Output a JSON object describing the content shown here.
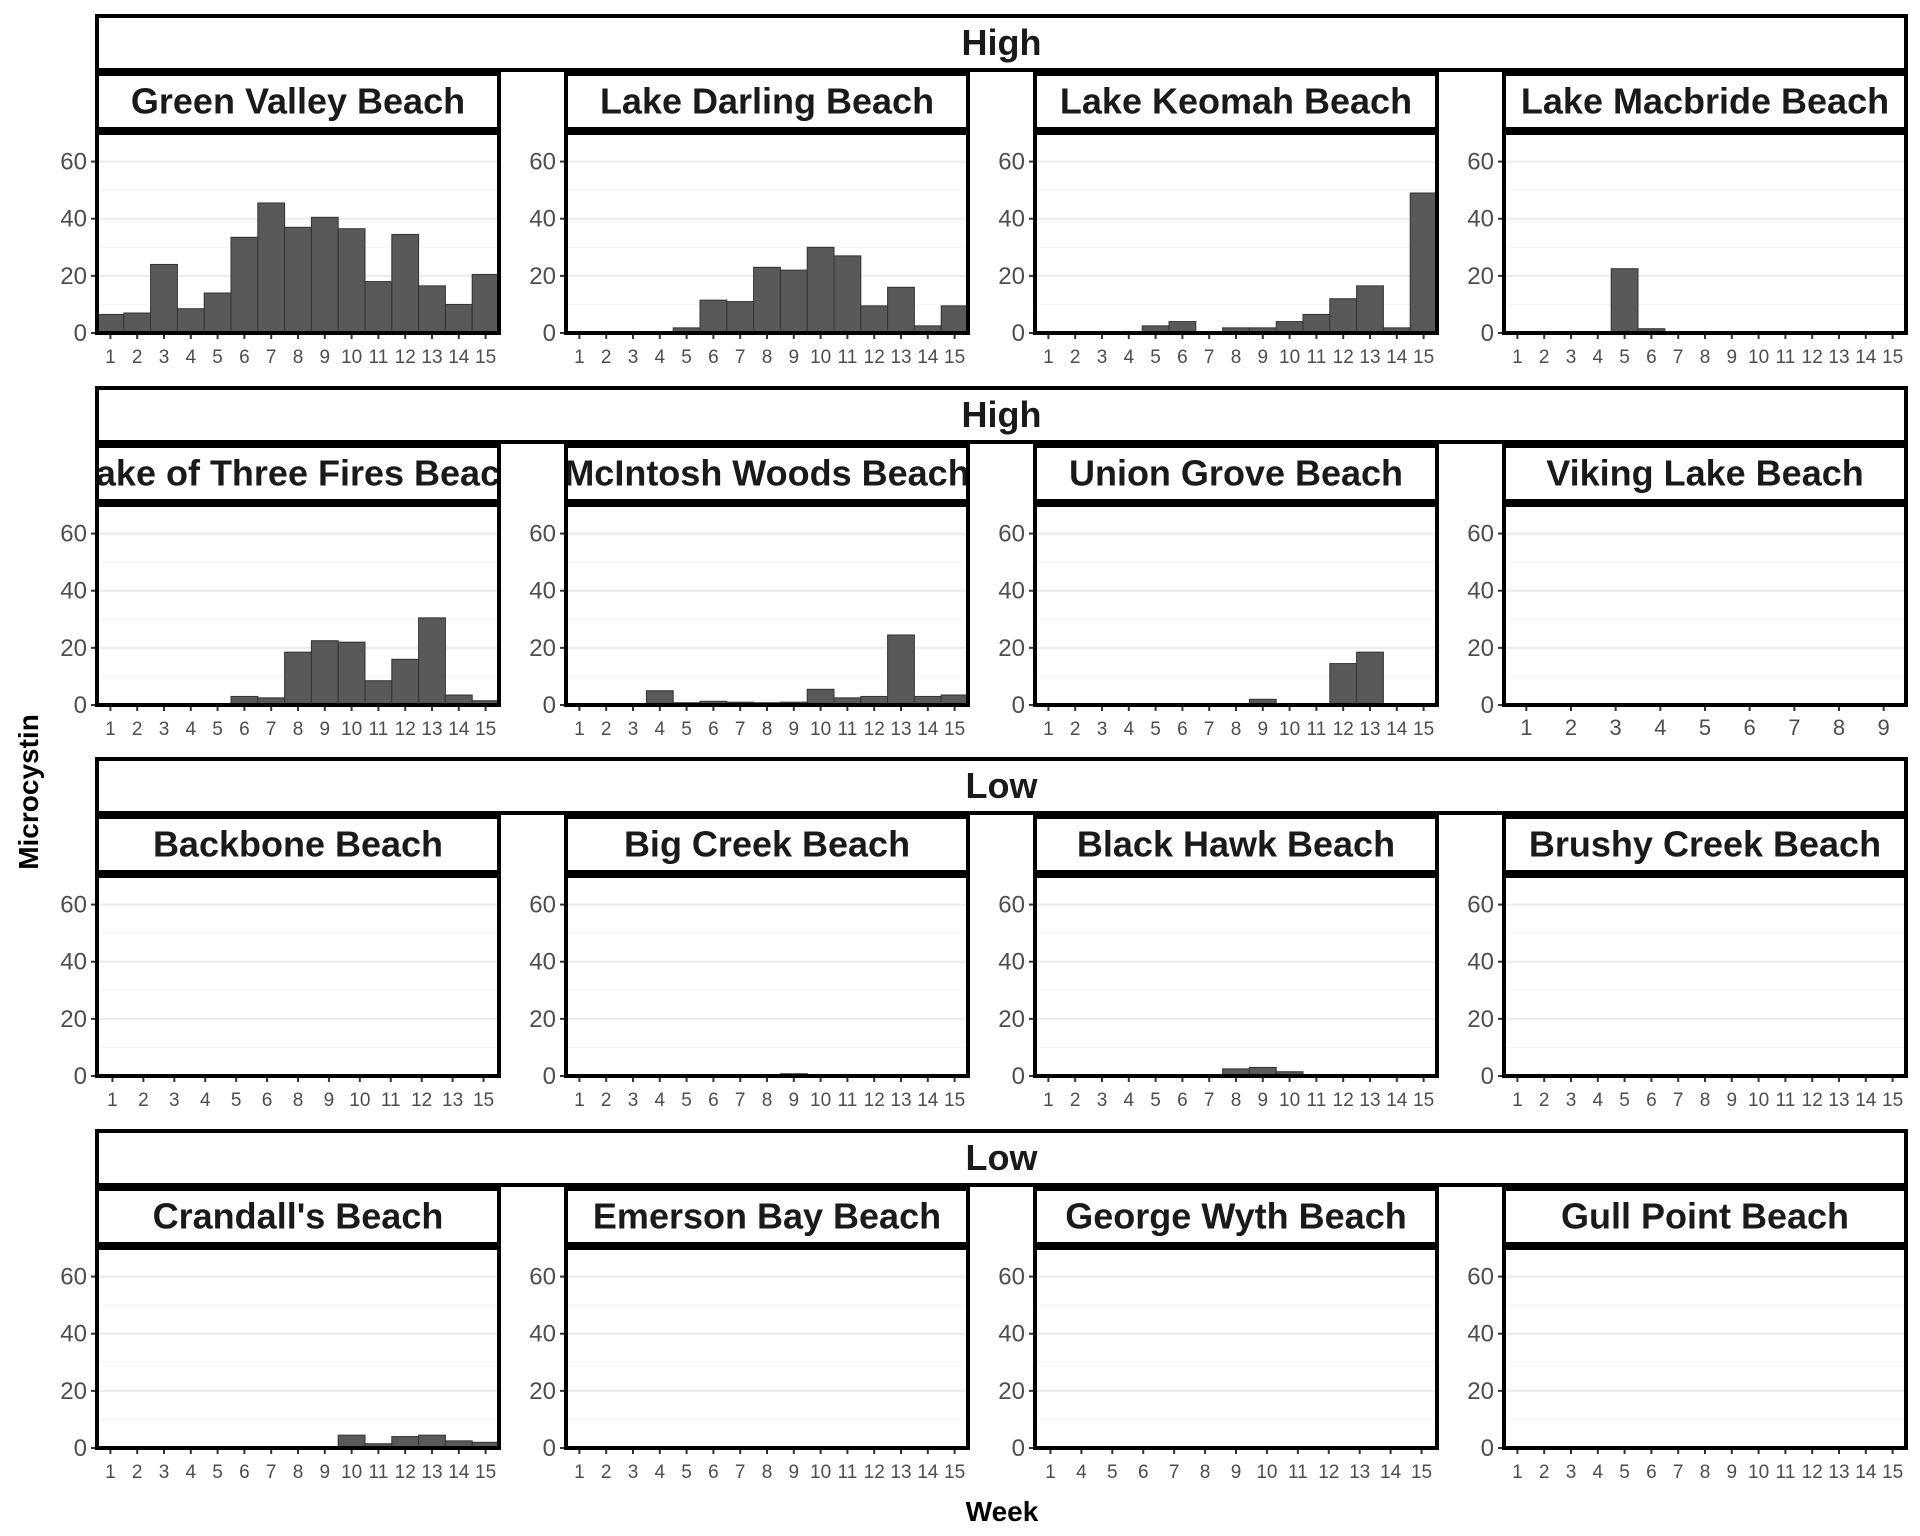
{
  "chart_data": {
    "type": "bar",
    "xlabel": "Week",
    "ylabel": "Microcystin",
    "ylim": [
      0,
      70
    ],
    "yticks": [
      0,
      20,
      40,
      60
    ],
    "grid": true,
    "legend": "none",
    "bar_color": "#595959",
    "bar_outline": "#333333",
    "groups": [
      {
        "label": "High",
        "panels": [
          {
            "title": "Green Valley Beach",
            "weeks": [
              "1",
              "2",
              "3",
              "4",
              "5",
              "6",
              "7",
              "8",
              "9",
              "10",
              "11",
              "12",
              "13",
              "14",
              "15"
            ],
            "values": [
              6.5,
              7,
              24,
              8.5,
              14,
              33.5,
              45.5,
              37,
              40.5,
              36.5,
              18,
              34.5,
              16.5,
              10,
              20.5
            ]
          },
          {
            "title": "Lake Darling Beach",
            "weeks": [
              "1",
              "2",
              "3",
              "4",
              "5",
              "6",
              "7",
              "8",
              "9",
              "10",
              "11",
              "12",
              "13",
              "14",
              "15"
            ],
            "values": [
              0.5,
              0.3,
              0.5,
              0.4,
              1.8,
              11.5,
              11,
              23,
              22,
              30,
              27,
              9.5,
              16,
              2.5,
              9.5
            ]
          },
          {
            "title": "Lake Keomah Beach",
            "weeks": [
              "1",
              "2",
              "3",
              "4",
              "5",
              "6",
              "7",
              "8",
              "9",
              "10",
              "11",
              "12",
              "13",
              "14",
              "15"
            ],
            "values": [
              0.3,
              0.3,
              0.3,
              0.3,
              2.5,
              4,
              0.5,
              1.8,
              1.8,
              4,
              6.5,
              12,
              16.5,
              1.8,
              49
            ]
          },
          {
            "title": "Lake Macbride Beach",
            "weeks": [
              "1",
              "2",
              "3",
              "4",
              "5",
              "6",
              "7",
              "8",
              "9",
              "10",
              "11",
              "12",
              "13",
              "14",
              "15"
            ],
            "values": [
              0.3,
              0.2,
              0.2,
              0.5,
              22.5,
              1.5,
              0.3,
              0.2,
              0.2,
              0.2,
              0.2,
              0.2,
              0.2,
              0.2,
              0.2
            ]
          }
        ]
      },
      {
        "label": "High",
        "panels": [
          {
            "title": "Lake of Three Fires Beach",
            "weeks": [
              "1",
              "2",
              "3",
              "4",
              "5",
              "6",
              "7",
              "8",
              "9",
              "10",
              "11",
              "12",
              "13",
              "14",
              "15"
            ],
            "values": [
              0.2,
              0.2,
              0.2,
              0.5,
              0.5,
              3,
              2.5,
              18.5,
              22.5,
              22,
              8.5,
              16,
              30.5,
              3.5,
              1.5
            ]
          },
          {
            "title": "McIntosh Woods Beach",
            "weeks": [
              "1",
              "2",
              "3",
              "4",
              "5",
              "6",
              "7",
              "8",
              "9",
              "10",
              "11",
              "12",
              "13",
              "14",
              "15"
            ],
            "values": [
              0.2,
              0.2,
              0.3,
              5,
              0.8,
              1.3,
              1,
              0.8,
              1,
              5.5,
              2.5,
              3,
              24.5,
              3,
              3.5
            ]
          },
          {
            "title": "Union Grove Beach",
            "weeks": [
              "1",
              "2",
              "3",
              "4",
              "5",
              "6",
              "7",
              "8",
              "9",
              "10",
              "11",
              "12",
              "13",
              "14",
              "15"
            ],
            "values": [
              0.1,
              0.1,
              0.1,
              0.1,
              0.1,
              0.3,
              0.2,
              0.3,
              2,
              0.5,
              0.5,
              14.5,
              18.5,
              0.3,
              0.2
            ]
          },
          {
            "title": "Viking Lake Beach",
            "weeks": [
              "1",
              "2",
              "3",
              "4",
              "5",
              "6",
              "7",
              "8",
              "9"
            ],
            "values": [
              0.2,
              0.2,
              0.2,
              0.2,
              0.2,
              0.2,
              0.2,
              0.2,
              0.5
            ]
          }
        ]
      },
      {
        "label": "Low",
        "panels": [
          {
            "title": "Backbone Beach",
            "weeks": [
              "1",
              "2",
              "3",
              "4",
              "5",
              "6",
              "8",
              "9",
              "10",
              "11",
              "12",
              "13",
              "15"
            ],
            "values": [
              0.1,
              0.1,
              0.1,
              0.1,
              0.1,
              0.1,
              0.1,
              0.1,
              0.1,
              0.1,
              0.1,
              0.1,
              0.1
            ]
          },
          {
            "title": "Big Creek Beach",
            "weeks": [
              "1",
              "2",
              "3",
              "4",
              "5",
              "6",
              "7",
              "8",
              "9",
              "10",
              "11",
              "12",
              "13",
              "14",
              "15"
            ],
            "values": [
              0.1,
              0.1,
              0.1,
              0.1,
              0.1,
              0.1,
              0.1,
              0.2,
              0.8,
              0.2,
              0.1,
              0.2,
              0.3,
              0.1,
              0.1
            ]
          },
          {
            "title": "Black Hawk Beach",
            "weeks": [
              "1",
              "2",
              "3",
              "4",
              "5",
              "6",
              "7",
              "8",
              "9",
              "10",
              "11",
              "12",
              "13",
              "14",
              "15"
            ],
            "values": [
              0.1,
              0.1,
              0.1,
              0.1,
              0.2,
              0.5,
              0.3,
              2.5,
              3,
              1.5,
              0.3,
              0.2,
              0.5,
              0.2,
              0.1
            ]
          },
          {
            "title": "Brushy Creek Beach",
            "weeks": [
              "1",
              "2",
              "3",
              "4",
              "5",
              "6",
              "7",
              "8",
              "9",
              "10",
              "11",
              "12",
              "13",
              "14",
              "15"
            ],
            "values": [
              0.1,
              0.1,
              0.1,
              0.2,
              0.1,
              0.1,
              0.1,
              0.1,
              0.1,
              0.1,
              0.1,
              0.1,
              0.1,
              0.1,
              0.1
            ]
          }
        ]
      },
      {
        "label": "Low",
        "panels": [
          {
            "title": "Crandall's Beach",
            "weeks": [
              "1",
              "2",
              "3",
              "4",
              "5",
              "6",
              "7",
              "8",
              "9",
              "10",
              "11",
              "12",
              "13",
              "14",
              "15"
            ],
            "values": [
              0.1,
              0.1,
              0.1,
              0.1,
              0.1,
              0.1,
              0.1,
              0.2,
              0.3,
              4.5,
              1.5,
              4,
              4.5,
              2.5,
              2
            ]
          },
          {
            "title": "Emerson Bay Beach",
            "weeks": [
              "1",
              "2",
              "3",
              "4",
              "5",
              "6",
              "7",
              "8",
              "9",
              "10",
              "11",
              "12",
              "13",
              "14",
              "15"
            ],
            "values": [
              0.1,
              0.1,
              0.1,
              0.1,
              0.1,
              0.1,
              0.1,
              0.1,
              0.5,
              0.1,
              0.1,
              0.1,
              0.1,
              0.1,
              0.1
            ]
          },
          {
            "title": "George Wyth Beach",
            "weeks": [
              "1",
              "4",
              "5",
              "6",
              "7",
              "8",
              "9",
              "10",
              "11",
              "12",
              "13",
              "14",
              "15"
            ],
            "values": [
              0.1,
              0.1,
              0.1,
              0.1,
              0.1,
              0.1,
              0.1,
              0.1,
              0.1,
              0.1,
              0.3,
              0.1,
              0.1
            ]
          },
          {
            "title": "Gull Point Beach",
            "weeks": [
              "1",
              "2",
              "3",
              "4",
              "5",
              "6",
              "7",
              "8",
              "9",
              "10",
              "11",
              "12",
              "13",
              "14",
              "15"
            ],
            "values": [
              0.1,
              0.1,
              0.1,
              0.2,
              0.1,
              0.1,
              0.1,
              0.1,
              0.1,
              0.1,
              0.1,
              0.1,
              0.1,
              0.1,
              0.1
            ]
          }
        ]
      }
    ]
  }
}
